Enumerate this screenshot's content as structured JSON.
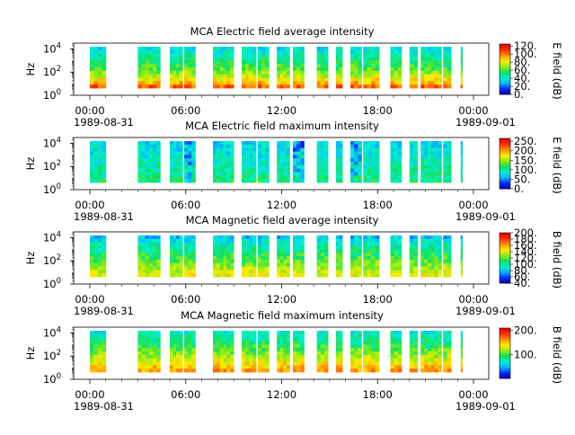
{
  "chart_data": [
    {
      "type": "heatmap",
      "title": "MCA  Electric field average intensity",
      "ylabel": "Hz",
      "y_scale": "log",
      "y_ticks": [
        {
          "base": "10",
          "exp": "0"
        },
        {
          "base": "10",
          "exp": "2"
        },
        {
          "base": "10",
          "exp": "4"
        }
      ],
      "x_ticks": [
        "00:00",
        "06:00",
        "12:00",
        "18:00",
        "00:00"
      ],
      "date_start": "1989-08-31",
      "date_end": "1989-09-01",
      "colorbar_label": "E field (dB)",
      "colorbar_ticks": [
        "0.",
        "20.",
        "40.",
        "60.",
        "80.",
        "100.",
        "120."
      ],
      "colorbar_range": [
        0,
        125
      ],
      "data_intervals_hours": [
        [
          0.0,
          1.0
        ],
        [
          3.0,
          4.4
        ],
        [
          5.0,
          5.8
        ],
        [
          5.9,
          6.6
        ],
        [
          7.7,
          9.0
        ],
        [
          9.5,
          10.4
        ],
        [
          10.5,
          11.2
        ],
        [
          11.7,
          12.5
        ],
        [
          12.7,
          13.4
        ],
        [
          14.2,
          14.9
        ],
        [
          15.4,
          15.8
        ],
        [
          16.3,
          17.0
        ],
        [
          17.1,
          18.1
        ],
        [
          18.8,
          19.5
        ],
        [
          20.0,
          20.5
        ],
        [
          20.7,
          22.0
        ],
        [
          22.1,
          22.6
        ],
        [
          23.2,
          23.3
        ]
      ],
      "colorscale": [
        "#0000b0",
        "#0028ff",
        "#00b4ff",
        "#00f0d0",
        "#10e060",
        "#90ee10",
        "#ffea00",
        "#ff9000",
        "#ff3000",
        "#e00000"
      ]
    },
    {
      "type": "heatmap",
      "title": "MCA  Electric field maximum intensity",
      "ylabel": "Hz",
      "y_scale": "log",
      "y_ticks": [
        {
          "base": "10",
          "exp": "0"
        },
        {
          "base": "10",
          "exp": "2"
        },
        {
          "base": "10",
          "exp": "4"
        }
      ],
      "x_ticks": [
        "00:00",
        "06:00",
        "12:00",
        "18:00",
        "00:00"
      ],
      "date_start": "1989-08-31",
      "date_end": "1989-09-01",
      "colorbar_label": "E field (dB)",
      "colorbar_ticks": [
        "0.",
        "50.",
        "100.",
        "150.",
        "200.",
        "250."
      ],
      "colorbar_range": [
        0,
        265
      ],
      "data_intervals_hours": [
        [
          0.0,
          1.0
        ],
        [
          3.0,
          4.4
        ],
        [
          5.0,
          5.8
        ],
        [
          5.9,
          6.6
        ],
        [
          7.7,
          9.0
        ],
        [
          9.5,
          10.4
        ],
        [
          10.5,
          11.2
        ],
        [
          11.7,
          12.5
        ],
        [
          12.7,
          13.4
        ],
        [
          14.2,
          14.9
        ],
        [
          15.4,
          15.8
        ],
        [
          16.3,
          17.0
        ],
        [
          17.1,
          18.1
        ],
        [
          18.8,
          19.5
        ],
        [
          20.0,
          20.5
        ],
        [
          20.7,
          22.0
        ],
        [
          22.1,
          22.6
        ],
        [
          23.2,
          23.3
        ]
      ],
      "colorscale": [
        "#0000b0",
        "#0028ff",
        "#00b4ff",
        "#00f0d0",
        "#10e060",
        "#90ee10",
        "#ffea00",
        "#ff9000",
        "#ff3000",
        "#e00000"
      ]
    },
    {
      "type": "heatmap",
      "title": "MCA  Magnetic field average intensity",
      "ylabel": "Hz",
      "y_scale": "log",
      "y_ticks": [
        {
          "base": "10",
          "exp": "0"
        },
        {
          "base": "10",
          "exp": "2"
        },
        {
          "base": "10",
          "exp": "4"
        }
      ],
      "x_ticks": [
        "00:00",
        "06:00",
        "12:00",
        "18:00",
        "00:00"
      ],
      "date_start": "1989-08-31",
      "date_end": "1989-09-01",
      "colorbar_label": "B field (dB)",
      "colorbar_ticks": [
        "40.",
        "60.",
        "80.",
        "100.",
        "120.",
        "140.",
        "160.",
        "180.",
        "200."
      ],
      "colorbar_range": [
        40,
        200
      ],
      "data_intervals_hours": [
        [
          0.0,
          1.0
        ],
        [
          3.0,
          4.4
        ],
        [
          5.0,
          5.8
        ],
        [
          5.9,
          6.6
        ],
        [
          7.7,
          9.0
        ],
        [
          9.5,
          10.4
        ],
        [
          10.5,
          11.2
        ],
        [
          11.7,
          12.5
        ],
        [
          12.7,
          13.4
        ],
        [
          14.2,
          14.9
        ],
        [
          15.4,
          15.8
        ],
        [
          16.3,
          17.0
        ],
        [
          17.1,
          18.1
        ],
        [
          18.8,
          19.5
        ],
        [
          20.0,
          20.5
        ],
        [
          20.7,
          22.0
        ],
        [
          22.1,
          22.6
        ],
        [
          23.2,
          23.3
        ]
      ],
      "colorscale": [
        "#0000b0",
        "#0028ff",
        "#00b4ff",
        "#00f0d0",
        "#10e060",
        "#90ee10",
        "#ffea00",
        "#ff9000",
        "#ff3000",
        "#e00000"
      ]
    },
    {
      "type": "heatmap",
      "title": "MCA  Magnetic field maximum intensity",
      "ylabel": "Hz",
      "y_scale": "log",
      "y_ticks": [
        {
          "base": "10",
          "exp": "0"
        },
        {
          "base": "10",
          "exp": "2"
        },
        {
          "base": "10",
          "exp": "4"
        }
      ],
      "x_ticks": [
        "00:00",
        "06:00",
        "12:00",
        "18:00",
        "00:00"
      ],
      "date_start": "1989-08-31",
      "date_end": "1989-09-01",
      "colorbar_label": "B field (dB)",
      "colorbar_ticks": [
        "100.",
        "200."
      ],
      "colorbar_range": [
        0,
        210
      ],
      "data_intervals_hours": [
        [
          0.0,
          1.0
        ],
        [
          3.0,
          4.4
        ],
        [
          5.0,
          5.8
        ],
        [
          5.9,
          6.6
        ],
        [
          7.7,
          9.0
        ],
        [
          9.5,
          10.4
        ],
        [
          10.5,
          11.2
        ],
        [
          11.7,
          12.5
        ],
        [
          12.7,
          13.4
        ],
        [
          14.2,
          14.9
        ],
        [
          15.4,
          15.8
        ],
        [
          16.3,
          17.0
        ],
        [
          17.1,
          18.1
        ],
        [
          18.8,
          19.5
        ],
        [
          20.0,
          20.5
        ],
        [
          20.7,
          22.0
        ],
        [
          22.1,
          22.6
        ],
        [
          23.2,
          23.3
        ]
      ],
      "colorscale": [
        "#0000b0",
        "#0028ff",
        "#00b4ff",
        "#00f0d0",
        "#10e060",
        "#90ee10",
        "#ffea00",
        "#ff9000",
        "#ff3000",
        "#e00000"
      ]
    }
  ]
}
